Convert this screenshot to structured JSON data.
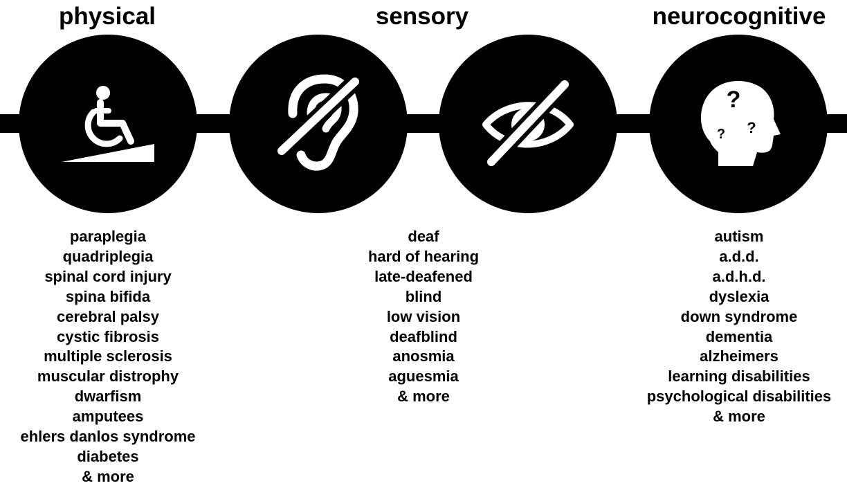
{
  "categories": [
    {
      "heading": "physical",
      "items": [
        "paraplegia",
        "quadriplegia",
        "spinal cord injury",
        "spina bifida",
        "cerebral palsy",
        "cystic fibrosis",
        "multiple sclerosis",
        "muscular distrophy",
        "dwarfism",
        "amputees",
        "ehlers danlos syndrome",
        "diabetes",
        "& more"
      ]
    },
    {
      "heading": "sensory",
      "items": [
        "deaf",
        "hard of hearing",
        "late-deafened",
        "blind",
        "low vision",
        "deafblind",
        "anosmia",
        "aguesmia",
        "& more"
      ]
    },
    {
      "heading": "neurocognitive",
      "items": [
        "autism",
        "a.d.d.",
        "a.d.h.d.",
        "dyslexia",
        "down syndrome",
        "dementia",
        "alzheimers",
        "learning disabilities",
        "psychological disabilities",
        "& more"
      ]
    }
  ],
  "icons": {
    "physical": "wheelchair-ramp-icon",
    "hearing": "hearing-impaired-ear-icon",
    "vision": "vision-impaired-eye-icon",
    "neuro": "head-question-marks-icon"
  },
  "colors": {
    "foreground": "#000000",
    "icon": "#ffffff",
    "background": "#ffffff"
  }
}
